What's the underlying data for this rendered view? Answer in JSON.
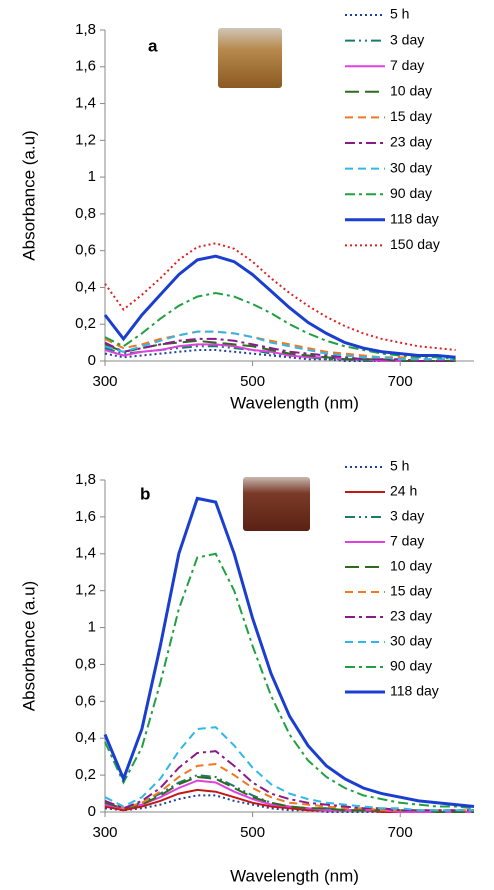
{
  "chart_data": [
    {
      "type": "line",
      "panel_label": "a",
      "x_label": "Wavelength (nm)",
      "y_label": "Absorbance (a.u)",
      "xlim": [
        300,
        800
      ],
      "xticks": [
        300,
        500,
        700
      ],
      "ylim": [
        0,
        1.8
      ],
      "yticks": [
        0,
        {
          "value": 0.2,
          "label": "0,2"
        },
        {
          "value": 0.4,
          "label": "0,4"
        },
        {
          "value": 0.6,
          "label": "0,6"
        },
        {
          "value": 0.8,
          "label": "0,8"
        },
        1,
        {
          "value": 1.2,
          "label": "1,2"
        },
        {
          "value": 1.4,
          "label": "1,4"
        },
        {
          "value": 1.6,
          "label": "1,6"
        },
        {
          "value": 1.8,
          "label": "1,8"
        }
      ],
      "x": [
        300,
        325,
        350,
        375,
        400,
        425,
        450,
        475,
        500,
        525,
        550,
        575,
        600,
        625,
        650,
        675,
        700,
        725,
        750,
        775
      ],
      "series": [
        {
          "name": "5 h",
          "color": "#1f3fa0",
          "line_style": "dotted",
          "values": [
            0.04,
            0.02,
            0.03,
            0.04,
            0.05,
            0.06,
            0.06,
            0.05,
            0.04,
            0.03,
            0.02,
            0.01,
            0.01,
            0,
            0,
            0,
            0,
            0,
            0,
            0
          ]
        },
        {
          "name": "3 day",
          "color": "#1a7a6e",
          "line_style": "dash-dot-dot",
          "values": [
            0.07,
            0.04,
            0.05,
            0.06,
            0.07,
            0.08,
            0.08,
            0.07,
            0.06,
            0.04,
            0.03,
            0.02,
            0.01,
            0.01,
            0,
            0,
            0,
            0,
            0,
            0
          ]
        },
        {
          "name": "7 day",
          "color": "#e040e0",
          "line_style": "solid",
          "values": [
            0.06,
            0.03,
            0.05,
            0.06,
            0.08,
            0.09,
            0.09,
            0.08,
            0.06,
            0.05,
            0.03,
            0.02,
            0.02,
            0.01,
            0.01,
            0,
            0,
            0,
            0,
            0
          ]
        },
        {
          "name": "10 day",
          "color": "#2e6b1e",
          "line_style": "long-dash",
          "values": [
            0.09,
            0.05,
            0.07,
            0.09,
            0.1,
            0.11,
            0.1,
            0.09,
            0.08,
            0.06,
            0.04,
            0.03,
            0.02,
            0.01,
            0.01,
            0.01,
            0,
            0,
            0,
            0
          ]
        },
        {
          "name": "15 day",
          "color": "#f07820",
          "line_style": "dash",
          "values": [
            0.12,
            0.07,
            0.09,
            0.12,
            0.14,
            0.16,
            0.16,
            0.15,
            0.13,
            0.11,
            0.09,
            0.07,
            0.05,
            0.04,
            0.03,
            0.02,
            0.02,
            0.01,
            0.01,
            0.01
          ]
        },
        {
          "name": "23 day",
          "color": "#8a1a8a",
          "line_style": "dash-dot",
          "values": [
            0.1,
            0.05,
            0.07,
            0.09,
            0.11,
            0.12,
            0.12,
            0.11,
            0.09,
            0.07,
            0.05,
            0.04,
            0.03,
            0.02,
            0.01,
            0.01,
            0.01,
            0,
            0,
            0
          ]
        },
        {
          "name": "30 day",
          "color": "#30b8e8",
          "line_style": "dash",
          "values": [
            0.08,
            0.05,
            0.08,
            0.11,
            0.14,
            0.16,
            0.16,
            0.15,
            0.13,
            0.1,
            0.08,
            0.06,
            0.04,
            0.03,
            0.02,
            0.02,
            0.01,
            0.01,
            0.01,
            0.01
          ]
        },
        {
          "name": "90 day",
          "color": "#20a040",
          "line_style": "dash-dot",
          "values": [
            0.13,
            0.08,
            0.15,
            0.23,
            0.3,
            0.35,
            0.37,
            0.35,
            0.31,
            0.26,
            0.2,
            0.15,
            0.11,
            0.08,
            0.06,
            0.04,
            0.03,
            0.02,
            0.02,
            0.01
          ]
        },
        {
          "name": "118 day",
          "color": "#1a3fd0",
          "line_style": "thick",
          "values": [
            0.25,
            0.12,
            0.25,
            0.36,
            0.47,
            0.55,
            0.57,
            0.54,
            0.47,
            0.38,
            0.29,
            0.21,
            0.15,
            0.1,
            0.07,
            0.05,
            0.04,
            0.03,
            0.03,
            0.02
          ]
        },
        {
          "name": "150 day",
          "color": "#e02020",
          "line_style": "dotted",
          "values": [
            0.42,
            0.28,
            0.36,
            0.45,
            0.55,
            0.62,
            0.64,
            0.61,
            0.54,
            0.45,
            0.37,
            0.3,
            0.24,
            0.19,
            0.15,
            0.12,
            0.1,
            0.08,
            0.07,
            0.06
          ]
        }
      ]
    },
    {
      "type": "line",
      "panel_label": "b",
      "x_label": "Wavelength (nm)",
      "y_label": "Absorbance (a.u)",
      "xlim": [
        300,
        800
      ],
      "xticks": [
        300,
        500,
        700
      ],
      "ylim": [
        0,
        1.8
      ],
      "yticks": [
        0,
        {
          "value": 0.2,
          "label": "0,2"
        },
        {
          "value": 0.4,
          "label": "0,4"
        },
        {
          "value": 0.6,
          "label": "0,6"
        },
        {
          "value": 0.8,
          "label": "0,8"
        },
        1,
        {
          "value": 1.2,
          "label": "1,2"
        },
        {
          "value": 1.4,
          "label": "1,4"
        },
        {
          "value": 1.6,
          "label": "1,6"
        },
        {
          "value": 1.8,
          "label": "1,8"
        }
      ],
      "x": [
        300,
        325,
        350,
        375,
        400,
        425,
        450,
        475,
        500,
        525,
        550,
        575,
        600,
        625,
        650,
        675,
        700,
        725,
        750,
        775,
        800
      ],
      "series": [
        {
          "name": "5 h",
          "color": "#1f3fa0",
          "line_style": "dotted",
          "values": [
            0.02,
            0.01,
            0.02,
            0.04,
            0.07,
            0.09,
            0.09,
            0.06,
            0.04,
            0.02,
            0.01,
            0.01,
            0,
            0,
            0,
            0,
            0,
            0,
            0,
            0,
            0
          ]
        },
        {
          "name": "24 h",
          "color": "#c01818",
          "line_style": "solid",
          "values": [
            0.03,
            0.01,
            0.03,
            0.06,
            0.1,
            0.12,
            0.11,
            0.08,
            0.05,
            0.03,
            0.02,
            0.01,
            0.01,
            0.01,
            0.01,
            0,
            0,
            0,
            0,
            0,
            0
          ]
        },
        {
          "name": "3 day",
          "color": "#1a7a6e",
          "line_style": "dash-dot-dot",
          "values": [
            0.05,
            0.02,
            0.05,
            0.1,
            0.16,
            0.2,
            0.19,
            0.14,
            0.09,
            0.05,
            0.03,
            0.02,
            0.02,
            0.01,
            0.01,
            0.01,
            0,
            0,
            0,
            0,
            0
          ]
        },
        {
          "name": "7 day",
          "color": "#e040e0",
          "line_style": "solid",
          "values": [
            0.04,
            0.02,
            0.04,
            0.08,
            0.13,
            0.17,
            0.16,
            0.11,
            0.07,
            0.04,
            0.03,
            0.02,
            0.01,
            0.01,
            0.01,
            0.01,
            0,
            0,
            0,
            0,
            0
          ]
        },
        {
          "name": "10 day",
          "color": "#2e6b1e",
          "line_style": "long-dash",
          "values": [
            0.05,
            0.02,
            0.04,
            0.09,
            0.15,
            0.19,
            0.18,
            0.13,
            0.08,
            0.05,
            0.03,
            0.02,
            0.02,
            0.01,
            0.01,
            0.01,
            0.01,
            0.01,
            0,
            0,
            0
          ]
        },
        {
          "name": "15 day",
          "color": "#f07820",
          "line_style": "dash",
          "values": [
            0.06,
            0.02,
            0.05,
            0.11,
            0.19,
            0.25,
            0.26,
            0.2,
            0.13,
            0.08,
            0.05,
            0.04,
            0.03,
            0.02,
            0.02,
            0.01,
            0.01,
            0.01,
            0.01,
            0.01,
            0.01
          ]
        },
        {
          "name": "23 day",
          "color": "#8a1a8a",
          "line_style": "dash-dot",
          "values": [
            0.06,
            0.02,
            0.06,
            0.13,
            0.24,
            0.32,
            0.33,
            0.25,
            0.16,
            0.1,
            0.07,
            0.05,
            0.04,
            0.03,
            0.02,
            0.02,
            0.01,
            0.01,
            0.01,
            0.01,
            0.01
          ]
        },
        {
          "name": "30 day",
          "color": "#30b8e8",
          "line_style": "dash",
          "values": [
            0.08,
            0.03,
            0.08,
            0.18,
            0.33,
            0.45,
            0.46,
            0.36,
            0.24,
            0.15,
            0.1,
            0.07,
            0.05,
            0.04,
            0.03,
            0.02,
            0.02,
            0.01,
            0.01,
            0.01,
            0.01
          ]
        },
        {
          "name": "90 day",
          "color": "#20a040",
          "line_style": "dash-dot",
          "values": [
            0.38,
            0.16,
            0.35,
            0.7,
            1.1,
            1.38,
            1.4,
            1.2,
            0.9,
            0.63,
            0.42,
            0.28,
            0.19,
            0.13,
            0.09,
            0.07,
            0.05,
            0.04,
            0.03,
            0.03,
            0.02
          ]
        },
        {
          "name": "118 day",
          "color": "#1a3fd0",
          "line_style": "thick",
          "values": [
            0.42,
            0.18,
            0.45,
            0.9,
            1.4,
            1.7,
            1.68,
            1.4,
            1.05,
            0.75,
            0.52,
            0.36,
            0.25,
            0.18,
            0.13,
            0.1,
            0.08,
            0.06,
            0.05,
            0.04,
            0.03
          ]
        }
      ]
    }
  ]
}
